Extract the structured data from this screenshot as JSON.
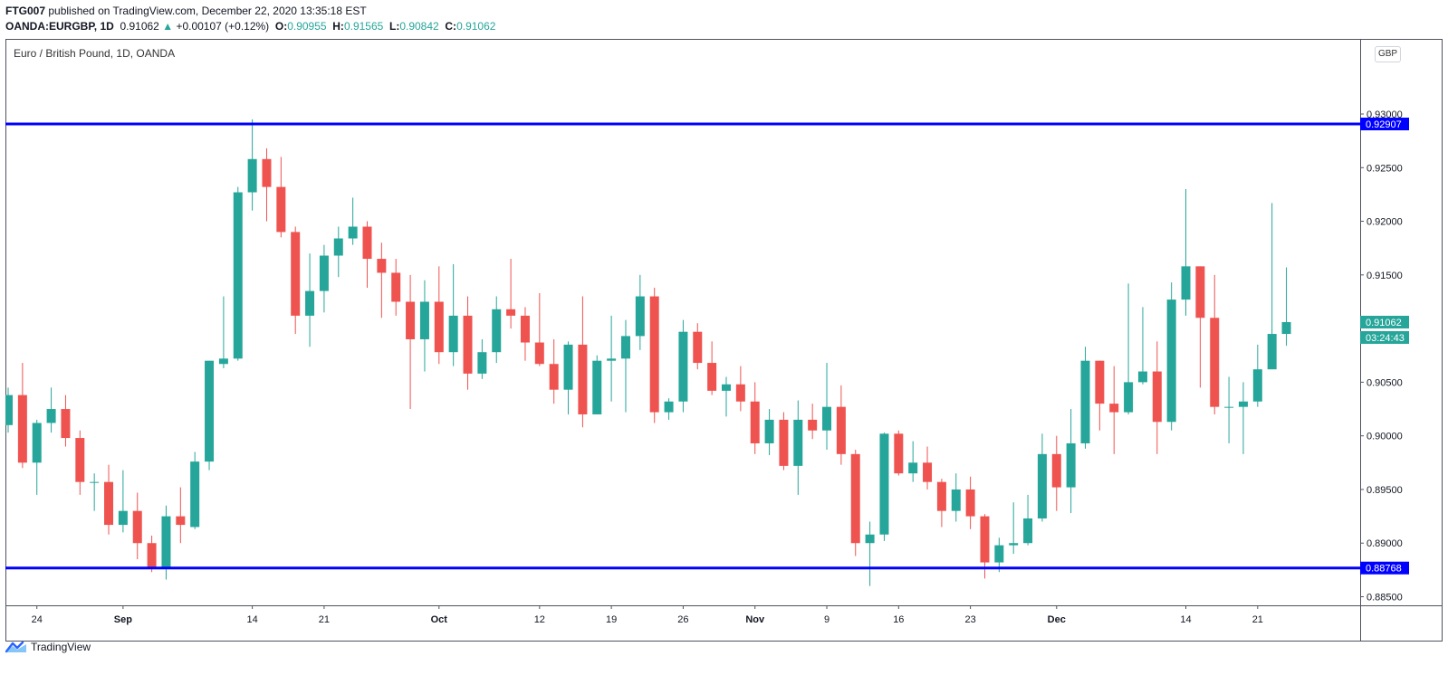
{
  "header": {
    "publisher": "FTG007",
    "published_text": "published on TradingView.com, December 22, 2020 13:35:18 EST",
    "symbol": "OANDA:EURGBP, 1D",
    "last_price": "0.91062",
    "change_arrow": "▲",
    "change": "+0.00107 (+0.12%)",
    "o_label": "O:",
    "o_value": "0.90955",
    "h_label": "H:",
    "h_value": "0.91565",
    "l_label": "L:",
    "l_value": "0.90842",
    "c_label": "C:",
    "c_value": "0.91062"
  },
  "instrument_title": "Euro / British Pound, 1D, OANDA",
  "currency_button": "GBP",
  "footer": {
    "brand": "TradingView",
    "logo_icon": "tradingview-logo-icon"
  },
  "colors": {
    "up": "#26a69a",
    "down": "#ef5350",
    "level_line": "#0000ff",
    "axis": "#131722"
  },
  "chart_data": {
    "type": "candlestick",
    "y_range": [
      0.8842,
      0.937
    ],
    "y_ticks": [
      "0.88500",
      "0.89000",
      "0.89500",
      "0.90000",
      "0.90500",
      "0.91500",
      "0.92000",
      "0.92500",
      "0.93000"
    ],
    "x_ticks": [
      {
        "label": "24",
        "index": 2
      },
      {
        "label": "Sep",
        "index": 8
      },
      {
        "label": "14",
        "index": 17
      },
      {
        "label": "21",
        "index": 22
      },
      {
        "label": "Oct",
        "index": 30
      },
      {
        "label": "12",
        "index": 37
      },
      {
        "label": "19",
        "index": 42
      },
      {
        "label": "26",
        "index": 47
      },
      {
        "label": "Nov",
        "index": 52
      },
      {
        "label": "9",
        "index": 57
      },
      {
        "label": "16",
        "index": 62
      },
      {
        "label": "23",
        "index": 67
      },
      {
        "label": "Dec",
        "index": 73
      },
      {
        "label": "14",
        "index": 82
      },
      {
        "label": "21",
        "index": 87
      }
    ],
    "levels": [
      {
        "value": 0.92907,
        "label": "0.92907"
      },
      {
        "value": 0.88768,
        "label": "0.88768"
      }
    ],
    "last_price_label": "0.91062",
    "countdown_label": "03:24:43",
    "candles": [
      {
        "o": 0.901,
        "h": 0.9045,
        "l": 0.9003,
        "c": 0.9038
      },
      {
        "o": 0.9038,
        "h": 0.9068,
        "l": 0.897,
        "c": 0.8975
      },
      {
        "o": 0.8975,
        "h": 0.9015,
        "l": 0.8945,
        "c": 0.9012
      },
      {
        "o": 0.9012,
        "h": 0.9045,
        "l": 0.9003,
        "c": 0.9025
      },
      {
        "o": 0.9025,
        "h": 0.9038,
        "l": 0.899,
        "c": 0.8998
      },
      {
        "o": 0.8998,
        "h": 0.9005,
        "l": 0.8945,
        "c": 0.8957
      },
      {
        "o": 0.8957,
        "h": 0.8965,
        "l": 0.893,
        "c": 0.8957
      },
      {
        "o": 0.8957,
        "h": 0.8973,
        "l": 0.8908,
        "c": 0.8917
      },
      {
        "o": 0.8917,
        "h": 0.8968,
        "l": 0.891,
        "c": 0.893
      },
      {
        "o": 0.893,
        "h": 0.8947,
        "l": 0.8885,
        "c": 0.89
      },
      {
        "o": 0.89,
        "h": 0.8907,
        "l": 0.8873,
        "c": 0.8876
      },
      {
        "o": 0.8876,
        "h": 0.8935,
        "l": 0.8866,
        "c": 0.8925
      },
      {
        "o": 0.8925,
        "h": 0.8952,
        "l": 0.89,
        "c": 0.8917
      },
      {
        "o": 0.8915,
        "h": 0.8985,
        "l": 0.8913,
        "c": 0.8976
      },
      {
        "o": 0.8976,
        "h": 0.907,
        "l": 0.8968,
        "c": 0.907
      },
      {
        "o": 0.9067,
        "h": 0.913,
        "l": 0.9063,
        "c": 0.9072
      },
      {
        "o": 0.9072,
        "h": 0.9232,
        "l": 0.907,
        "c": 0.9227
      },
      {
        "o": 0.9227,
        "h": 0.9295,
        "l": 0.921,
        "c": 0.9258
      },
      {
        "o": 0.9258,
        "h": 0.9268,
        "l": 0.92,
        "c": 0.9232
      },
      {
        "o": 0.9232,
        "h": 0.926,
        "l": 0.9185,
        "c": 0.919
      },
      {
        "o": 0.919,
        "h": 0.9195,
        "l": 0.9095,
        "c": 0.9112
      },
      {
        "o": 0.9112,
        "h": 0.917,
        "l": 0.9083,
        "c": 0.9135
      },
      {
        "o": 0.9135,
        "h": 0.9178,
        "l": 0.9115,
        "c": 0.9168
      },
      {
        "o": 0.9168,
        "h": 0.9195,
        "l": 0.9148,
        "c": 0.9184
      },
      {
        "o": 0.9184,
        "h": 0.9222,
        "l": 0.9178,
        "c": 0.9195
      },
      {
        "o": 0.9195,
        "h": 0.92,
        "l": 0.9138,
        "c": 0.9165
      },
      {
        "o": 0.9165,
        "h": 0.918,
        "l": 0.911,
        "c": 0.9152
      },
      {
        "o": 0.9152,
        "h": 0.9165,
        "l": 0.9112,
        "c": 0.9125
      },
      {
        "o": 0.9125,
        "h": 0.915,
        "l": 0.9025,
        "c": 0.909
      },
      {
        "o": 0.909,
        "h": 0.9145,
        "l": 0.906,
        "c": 0.9125
      },
      {
        "o": 0.9125,
        "h": 0.9158,
        "l": 0.9067,
        "c": 0.9078
      },
      {
        "o": 0.9078,
        "h": 0.916,
        "l": 0.9065,
        "c": 0.9112
      },
      {
        "o": 0.9112,
        "h": 0.913,
        "l": 0.9043,
        "c": 0.9058
      },
      {
        "o": 0.9058,
        "h": 0.909,
        "l": 0.9053,
        "c": 0.9078
      },
      {
        "o": 0.9078,
        "h": 0.913,
        "l": 0.9068,
        "c": 0.9118
      },
      {
        "o": 0.9118,
        "h": 0.9165,
        "l": 0.91,
        "c": 0.9112
      },
      {
        "o": 0.9112,
        "h": 0.912,
        "l": 0.907,
        "c": 0.9087
      },
      {
        "o": 0.9087,
        "h": 0.9133,
        "l": 0.9065,
        "c": 0.9067
      },
      {
        "o": 0.9067,
        "h": 0.909,
        "l": 0.903,
        "c": 0.9043
      },
      {
        "o": 0.9043,
        "h": 0.9088,
        "l": 0.902,
        "c": 0.9085
      },
      {
        "o": 0.9085,
        "h": 0.913,
        "l": 0.9008,
        "c": 0.902
      },
      {
        "o": 0.902,
        "h": 0.9075,
        "l": 0.902,
        "c": 0.907
      },
      {
        "o": 0.907,
        "h": 0.9112,
        "l": 0.9032,
        "c": 0.9072
      },
      {
        "o": 0.9072,
        "h": 0.9108,
        "l": 0.9022,
        "c": 0.9093
      },
      {
        "o": 0.9093,
        "h": 0.915,
        "l": 0.908,
        "c": 0.913
      },
      {
        "o": 0.913,
        "h": 0.9138,
        "l": 0.9012,
        "c": 0.9022
      },
      {
        "o": 0.9022,
        "h": 0.9035,
        "l": 0.9015,
        "c": 0.9032
      },
      {
        "o": 0.9032,
        "h": 0.9108,
        "l": 0.9022,
        "c": 0.9097
      },
      {
        "o": 0.9097,
        "h": 0.9105,
        "l": 0.9062,
        "c": 0.9068
      },
      {
        "o": 0.9068,
        "h": 0.9088,
        "l": 0.9038,
        "c": 0.9042
      },
      {
        "o": 0.9042,
        "h": 0.9055,
        "l": 0.9018,
        "c": 0.9048
      },
      {
        "o": 0.9048,
        "h": 0.9065,
        "l": 0.9023,
        "c": 0.9032
      },
      {
        "o": 0.9032,
        "h": 0.905,
        "l": 0.8983,
        "c": 0.8993
      },
      {
        "o": 0.8993,
        "h": 0.9025,
        "l": 0.8982,
        "c": 0.9015
      },
      {
        "o": 0.9015,
        "h": 0.9022,
        "l": 0.8968,
        "c": 0.8972
      },
      {
        "o": 0.8972,
        "h": 0.9033,
        "l": 0.8945,
        "c": 0.9015
      },
      {
        "o": 0.9015,
        "h": 0.903,
        "l": 0.8997,
        "c": 0.9005
      },
      {
        "o": 0.9005,
        "h": 0.9068,
        "l": 0.8987,
        "c": 0.9027
      },
      {
        "o": 0.9027,
        "h": 0.9047,
        "l": 0.8973,
        "c": 0.8983
      },
      {
        "o": 0.8983,
        "h": 0.8987,
        "l": 0.8888,
        "c": 0.89
      },
      {
        "o": 0.89,
        "h": 0.892,
        "l": 0.886,
        "c": 0.8908
      },
      {
        "o": 0.8908,
        "h": 0.9003,
        "l": 0.8902,
        "c": 0.9002
      },
      {
        "o": 0.9002,
        "h": 0.9005,
        "l": 0.8963,
        "c": 0.8965
      },
      {
        "o": 0.8965,
        "h": 0.8995,
        "l": 0.8957,
        "c": 0.8975
      },
      {
        "o": 0.8975,
        "h": 0.899,
        "l": 0.895,
        "c": 0.8957
      },
      {
        "o": 0.8957,
        "h": 0.896,
        "l": 0.8915,
        "c": 0.893
      },
      {
        "o": 0.893,
        "h": 0.8965,
        "l": 0.892,
        "c": 0.895
      },
      {
        "o": 0.895,
        "h": 0.8962,
        "l": 0.8913,
        "c": 0.8925
      },
      {
        "o": 0.8925,
        "h": 0.8927,
        "l": 0.8867,
        "c": 0.8882
      },
      {
        "o": 0.8882,
        "h": 0.8905,
        "l": 0.8873,
        "c": 0.8898
      },
      {
        "o": 0.8898,
        "h": 0.8938,
        "l": 0.889,
        "c": 0.89
      },
      {
        "o": 0.89,
        "h": 0.8945,
        "l": 0.8898,
        "c": 0.8923
      },
      {
        "o": 0.8923,
        "h": 0.9002,
        "l": 0.892,
        "c": 0.8983
      },
      {
        "o": 0.8983,
        "h": 0.9,
        "l": 0.893,
        "c": 0.8952
      },
      {
        "o": 0.8952,
        "h": 0.9025,
        "l": 0.8928,
        "c": 0.8993
      },
      {
        "o": 0.8993,
        "h": 0.9083,
        "l": 0.8988,
        "c": 0.907
      },
      {
        "o": 0.907,
        "h": 0.907,
        "l": 0.9005,
        "c": 0.903
      },
      {
        "o": 0.903,
        "h": 0.9065,
        "l": 0.8983,
        "c": 0.9022
      },
      {
        "o": 0.9022,
        "h": 0.9142,
        "l": 0.902,
        "c": 0.905
      },
      {
        "o": 0.905,
        "h": 0.912,
        "l": 0.9048,
        "c": 0.906
      },
      {
        "o": 0.906,
        "h": 0.9088,
        "l": 0.8983,
        "c": 0.9013
      },
      {
        "o": 0.9013,
        "h": 0.9143,
        "l": 0.9005,
        "c": 0.9127
      },
      {
        "o": 0.9127,
        "h": 0.923,
        "l": 0.9112,
        "c": 0.9158
      },
      {
        "o": 0.9158,
        "h": 0.9158,
        "l": 0.9045,
        "c": 0.911
      },
      {
        "o": 0.911,
        "h": 0.915,
        "l": 0.902,
        "c": 0.9027
      },
      {
        "o": 0.9027,
        "h": 0.9055,
        "l": 0.8993,
        "c": 0.9027
      },
      {
        "o": 0.9027,
        "h": 0.905,
        "l": 0.8983,
        "c": 0.9032
      },
      {
        "o": 0.9032,
        "h": 0.9085,
        "l": 0.9027,
        "c": 0.9062
      },
      {
        "o": 0.9062,
        "h": 0.9217,
        "l": 0.9062,
        "c": 0.9095
      },
      {
        "o": 0.9095,
        "h": 0.9157,
        "l": 0.9084,
        "c": 0.9106
      }
    ]
  }
}
